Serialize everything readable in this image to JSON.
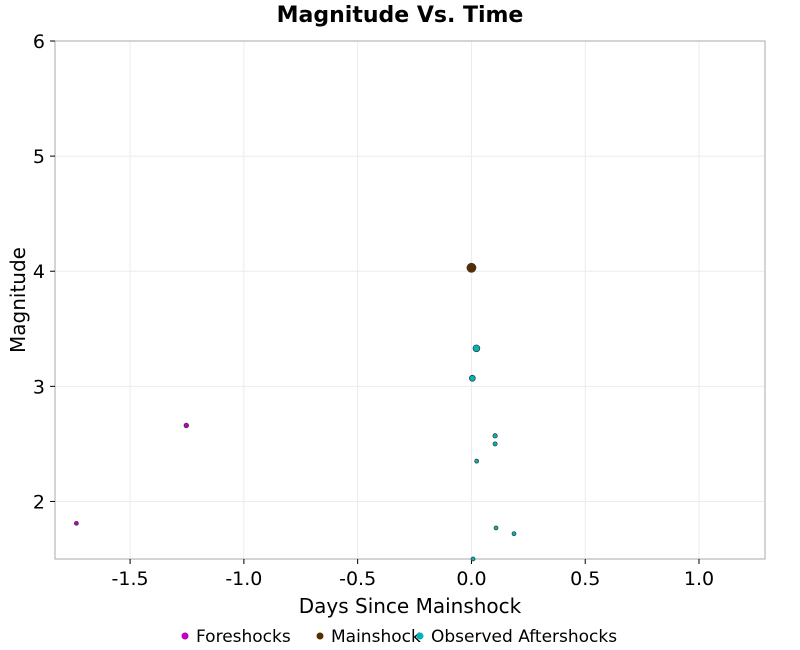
{
  "chart_data": {
    "type": "scatter",
    "title": "Magnitude Vs. Time",
    "xlabel": "Days Since Mainshock",
    "ylabel": "Magnitude",
    "xlim": [
      -1.83,
      1.29
    ],
    "ylim": [
      1.5,
      6
    ],
    "xticks": [
      -1.5,
      -1.0,
      -0.5,
      0.0,
      0.5,
      1.0
    ],
    "xtick_labels": [
      "-1.5",
      "-1.0",
      "-0.5",
      "0.0",
      "0.5",
      "1.0"
    ],
    "yticks": [
      2,
      3,
      4,
      5,
      6
    ],
    "ytick_labels": [
      "2",
      "3",
      "4",
      "5",
      "6"
    ],
    "grid": true,
    "legend_placement": "bottom",
    "series": [
      {
        "name": "Foreshocks",
        "color": "#c000c0",
        "points": [
          {
            "x": -1.736,
            "y": 1.81
          },
          {
            "x": -1.253,
            "y": 2.66
          }
        ]
      },
      {
        "name": "Mainshock",
        "color": "#5a2d00",
        "points": [
          {
            "x": 0.0,
            "y": 4.03
          }
        ]
      },
      {
        "name": "Observed Aftershocks",
        "color": "#00b5b5",
        "points": [
          {
            "x": 0.022,
            "y": 3.33
          },
          {
            "x": 0.004,
            "y": 3.07
          },
          {
            "x": 0.104,
            "y": 2.57
          },
          {
            "x": 0.104,
            "y": 2.5
          },
          {
            "x": 0.023,
            "y": 2.35
          },
          {
            "x": 0.108,
            "y": 1.77
          },
          {
            "x": 0.187,
            "y": 1.72
          },
          {
            "x": 0.007,
            "y": 1.5
          }
        ]
      }
    ]
  }
}
